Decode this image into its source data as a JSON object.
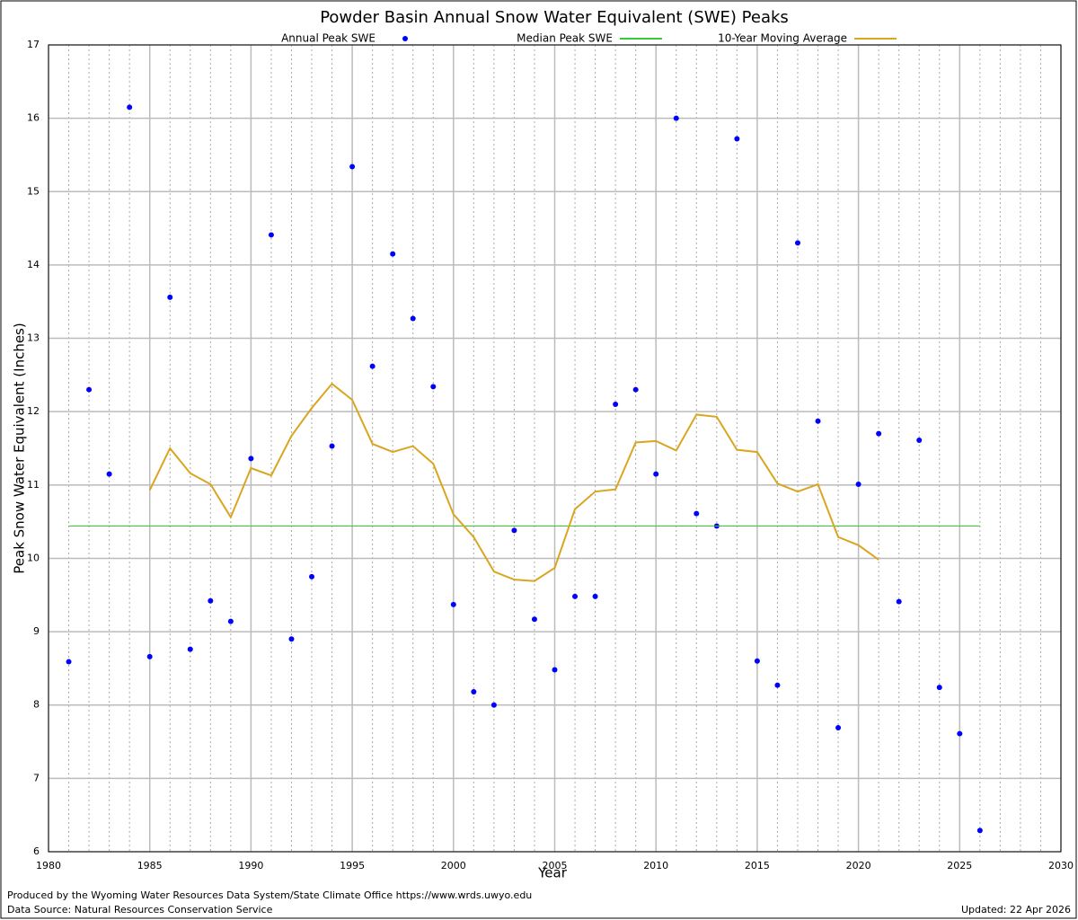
{
  "chart_data": {
    "type": "scatter",
    "title": "Powder Basin Annual Snow Water Equivalent (SWE) Peaks",
    "x_label": "Year",
    "y_label": "Peak Snow Water Equivalent (Inches)",
    "xlim": [
      1980,
      2030
    ],
    "ylim": [
      6,
      17
    ],
    "xticks": [
      1980,
      1985,
      1990,
      1995,
      2000,
      2005,
      2010,
      2015,
      2020,
      2025,
      2030
    ],
    "yticks": [
      6,
      7,
      8,
      9,
      10,
      11,
      12,
      13,
      14,
      15,
      16,
      17
    ],
    "x_minor_ticks": [
      1981,
      1982,
      1983,
      1984,
      1986,
      1987,
      1988,
      1989,
      1991,
      1992,
      1993,
      1994,
      1996,
      1997,
      1998,
      1999,
      2001,
      2002,
      2003,
      2004,
      2006,
      2007,
      2008,
      2009,
      2011,
      2012,
      2013,
      2014,
      2016,
      2017,
      2018,
      2019,
      2021,
      2022,
      2023,
      2024,
      2026,
      2027,
      2028,
      2029
    ],
    "grid": true,
    "legend": "top",
    "series": [
      {
        "name": "Annual Peak SWE",
        "type": "scatter",
        "color": "#0000ff",
        "x": [
          1981,
          1982,
          1983,
          1984,
          1985,
          1986,
          1987,
          1988,
          1989,
          1990,
          1991,
          1992,
          1993,
          1994,
          1995,
          1996,
          1997,
          1998,
          1999,
          2000,
          2001,
          2002,
          2003,
          2004,
          2005,
          2006,
          2007,
          2008,
          2009,
          2010,
          2011,
          2012,
          2013,
          2014,
          2015,
          2016,
          2017,
          2018,
          2019,
          2020,
          2021,
          2022,
          2023,
          2024,
          2025,
          2026
        ],
        "values": [
          8.59,
          12.3,
          11.15,
          16.15,
          8.66,
          13.56,
          8.76,
          9.42,
          9.14,
          11.36,
          14.41,
          8.9,
          9.75,
          11.53,
          15.34,
          12.62,
          14.15,
          13.27,
          12.34,
          9.37,
          8.18,
          8.0,
          10.38,
          9.17,
          8.48,
          9.48,
          9.48,
          12.1,
          12.3,
          11.15,
          16.0,
          10.61,
          10.44,
          15.72,
          8.6,
          8.27,
          14.3,
          11.87,
          7.69,
          11.01,
          11.7,
          9.41,
          11.61,
          8.24,
          7.61,
          6.29
        ]
      },
      {
        "name": "Median Peak SWE",
        "type": "line",
        "color": "#33cc33",
        "x": [
          1981,
          2026
        ],
        "values": [
          10.44,
          10.44
        ]
      },
      {
        "name": "10-Year Moving Average",
        "type": "line",
        "color": "#daa520",
        "x": [
          1985,
          1986,
          1987,
          1988,
          1989,
          1990,
          1991,
          1992,
          1993,
          1994,
          1995,
          1996,
          1997,
          1998,
          1999,
          2000,
          2001,
          2002,
          2003,
          2004,
          2005,
          2006,
          2007,
          2008,
          2009,
          2010,
          2011,
          2012,
          2013,
          2014,
          2015,
          2016,
          2017,
          2018,
          2019,
          2020,
          2021
        ],
        "values": [
          10.93,
          11.5,
          11.16,
          11.01,
          10.56,
          11.23,
          11.13,
          11.67,
          12.05,
          12.38,
          12.16,
          11.56,
          11.45,
          11.53,
          11.29,
          10.6,
          10.29,
          9.82,
          9.71,
          9.69,
          9.87,
          10.67,
          10.91,
          10.94,
          11.58,
          11.6,
          11.47,
          11.96,
          11.93,
          11.48,
          11.45,
          11.02,
          10.91,
          11.01,
          10.29,
          10.18,
          9.98
        ]
      }
    ],
    "footer_left": [
      "Produced by the Wyoming Water Resources Data System/State Climate Office https://www.wrds.uwyo.edu",
      "Data Source: Natural Resources Conservation Service"
    ],
    "footer_right": "Updated: 22 Apr 2026"
  }
}
